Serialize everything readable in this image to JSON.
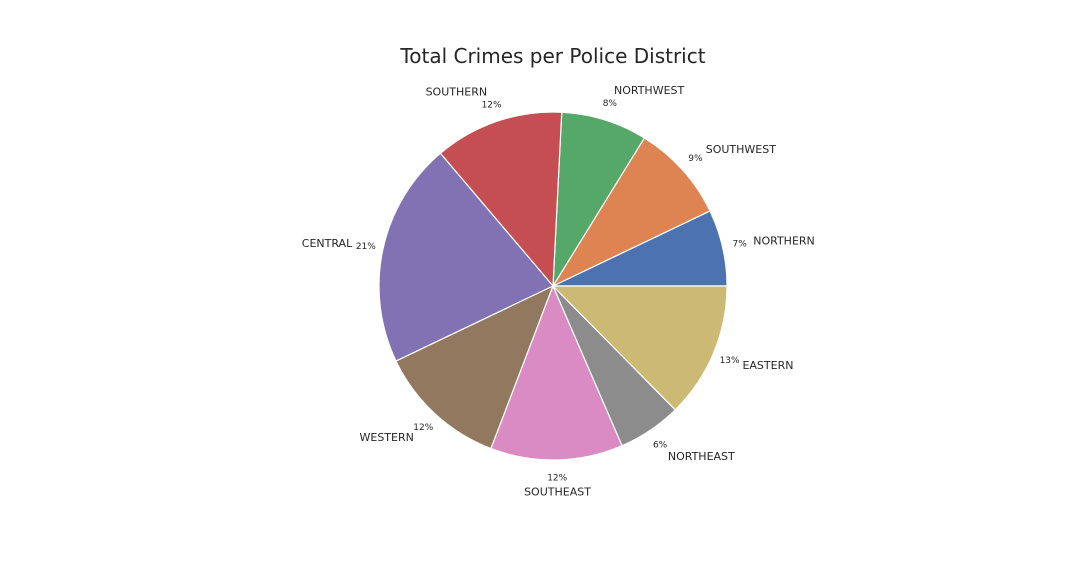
{
  "chart_data": {
    "type": "pie",
    "title": "Total Crimes per Police District",
    "categories": [
      "NORTHERN",
      "SOUTHWEST",
      "NORTHWEST",
      "SOUTHERN",
      "CENTRAL",
      "WESTERN",
      "SOUTHEAST",
      "NORTHEAST",
      "EASTERN"
    ],
    "values": [
      7.1,
      9.1,
      8.0,
      12.0,
      20.9,
      12.1,
      12.3,
      5.9,
      12.6
    ],
    "percent_labels": [
      "7%",
      "9%",
      "8%",
      "12%",
      "21%",
      "12%",
      "12%",
      "6%",
      "13%"
    ],
    "colors": [
      "#4c72b0",
      "#dd8452",
      "#55a868",
      "#c44e52",
      "#8172b3",
      "#937860",
      "#da8bc3",
      "#8c8c8c",
      "#ccb974"
    ],
    "start_angle": "0deg (3 o'clock)",
    "direction": "counterclockwise",
    "legend": "none"
  }
}
